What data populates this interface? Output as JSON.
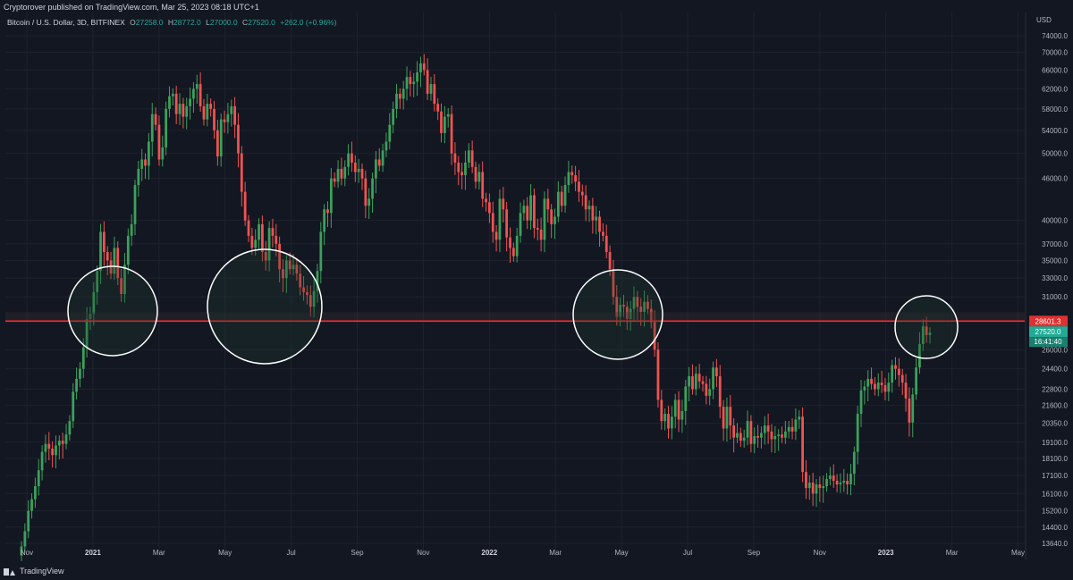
{
  "publisher": "Cryptorover published on TradingView.com, Mar 25, 2023 08:18 UTC+1",
  "header": {
    "symbol": "Bitcoin / U.S. Dollar, 3D, BITFINEX",
    "open_label": "O",
    "open": "27258.0",
    "high_label": "H",
    "high": "28772.0",
    "low_label": "L",
    "low": "27000.0",
    "close_label": "C",
    "close": "27520.0",
    "change": "+262.0 (+0.96%)"
  },
  "footer": {
    "brand": "TradingView"
  },
  "colors": {
    "background": "#131722",
    "up": "#26a69a",
    "candle_up": "#3ba15a",
    "candle_down": "#f05350",
    "resistance_line": "#ff2a2a",
    "circle": "#ffffff",
    "text": "#b2b5be",
    "grid": "#1e222d"
  },
  "chart_data": {
    "type": "candlestick",
    "title": "Bitcoin / U.S. Dollar, 3D, BITFINEX",
    "currency_label": "USD",
    "scale": "log",
    "grid": true,
    "x_ticks": [
      {
        "label": "Nov",
        "year": false
      },
      {
        "label": "2021",
        "year": true
      },
      {
        "label": "Mar",
        "year": false
      },
      {
        "label": "May",
        "year": false
      },
      {
        "label": "Jul",
        "year": false
      },
      {
        "label": "Sep",
        "year": false
      },
      {
        "label": "Nov",
        "year": false
      },
      {
        "label": "2022",
        "year": true
      },
      {
        "label": "Mar",
        "year": false
      },
      {
        "label": "May",
        "year": false
      },
      {
        "label": "Jul",
        "year": false
      },
      {
        "label": "Sep",
        "year": false
      },
      {
        "label": "Nov",
        "year": false
      },
      {
        "label": "2023",
        "year": true
      },
      {
        "label": "Mar",
        "year": false
      },
      {
        "label": "May",
        "year": false
      }
    ],
    "y_ticks": [
      "74000.0",
      "70000.0",
      "66000.0",
      "62000.0",
      "58000.0",
      "54000.0",
      "50000.0",
      "46000.0",
      "40000.0",
      "37000.0",
      "35000.0",
      "33000.0",
      "31000.0",
      "26000.0",
      "24400.0",
      "22800.0",
      "21600.0",
      "20350.0",
      "19100.0",
      "18100.0",
      "17100.0",
      "16100.0",
      "15200.0",
      "14400.0",
      "13640.0"
    ],
    "resistance_level": 28601.3,
    "resistance_label": "28601.3",
    "last_price": 27520.0,
    "last_price_label": "27520.0",
    "countdown": "16:41:40",
    "highlight_circles": 4,
    "series_close": [
      13500,
      14200,
      15200,
      15800,
      16500,
      17400,
      18500,
      19000,
      18700,
      18300,
      18900,
      19200,
      19000,
      19600,
      20500,
      22600,
      23600,
      24400,
      26200,
      28800,
      29300,
      31500,
      33800,
      38500,
      36000,
      35000,
      33500,
      36500,
      33000,
      31300,
      34500,
      38000,
      39500,
      45000,
      47500,
      49000,
      48000,
      52000,
      57000,
      55000,
      49000,
      51000,
      58000,
      60500,
      61000,
      57000,
      59000,
      56500,
      58500,
      60000,
      62000,
      63000,
      58500,
      56000,
      59000,
      58000,
      54000,
      49500,
      56000,
      55500,
      57000,
      58500,
      55000,
      50000,
      44000,
      40000,
      38000,
      36500,
      37500,
      39500,
      36000,
      35000,
      39000,
      38000,
      37000,
      34000,
      33000,
      35000,
      34000,
      34500,
      33500,
      32000,
      31500,
      31200,
      30000,
      31600,
      33800,
      38500,
      41500,
      41000,
      46000,
      45500,
      47500,
      46000,
      47800,
      50000,
      48500,
      47000,
      47500,
      46000,
      42000,
      43000,
      46000,
      49000,
      48000,
      50500,
      52000,
      55000,
      58000,
      61000,
      60000,
      62000,
      64500,
      63000,
      63500,
      65500,
      67500,
      66000,
      61000,
      63000,
      59000,
      57500,
      53500,
      56500,
      57000,
      50000,
      48500,
      47000,
      46500,
      48500,
      50500,
      47800,
      45500,
      47000,
      43000,
      42500,
      41000,
      38500,
      37500,
      43000,
      41500,
      37800,
      36500,
      35500,
      38000,
      41000,
      42000,
      40000,
      43500,
      39000,
      38800,
      37500,
      43000,
      41500,
      39500,
      40500,
      44000,
      42000,
      45000,
      47000,
      46500,
      45500,
      44000,
      43500,
      41500,
      42000,
      40000,
      40500,
      38500,
      38000,
      36000,
      34000,
      31000,
      29000,
      30200,
      30000,
      28800,
      29800,
      31000,
      30000,
      29500,
      30500,
      29800,
      28500,
      26000,
      22000,
      20500,
      21000,
      20000,
      20800,
      22000,
      20600,
      21200,
      23000,
      23800,
      22800,
      24000,
      23400,
      23200,
      22300,
      22800,
      24500,
      23800,
      21500,
      20000,
      21500,
      20200,
      19400,
      19700,
      19200,
      19400,
      20500,
      19000,
      19500,
      19400,
      19700,
      20200,
      19800,
      19300,
      19500,
      19600,
      19400,
      19800,
      20100,
      19800,
      20600,
      20800,
      17300,
      16400,
      16700,
      16100,
      16600,
      16400,
      16500,
      16900,
      17100,
      16800,
      16600,
      16700,
      16800,
      16600,
      17200,
      18500,
      21000,
      22700,
      23000,
      23600,
      23200,
      22800,
      23300,
      23100,
      22600,
      23300,
      24700,
      24400,
      23900,
      23300,
      22100,
      20400,
      22400,
      24500,
      26500,
      28100,
      27300,
      27520
    ]
  }
}
